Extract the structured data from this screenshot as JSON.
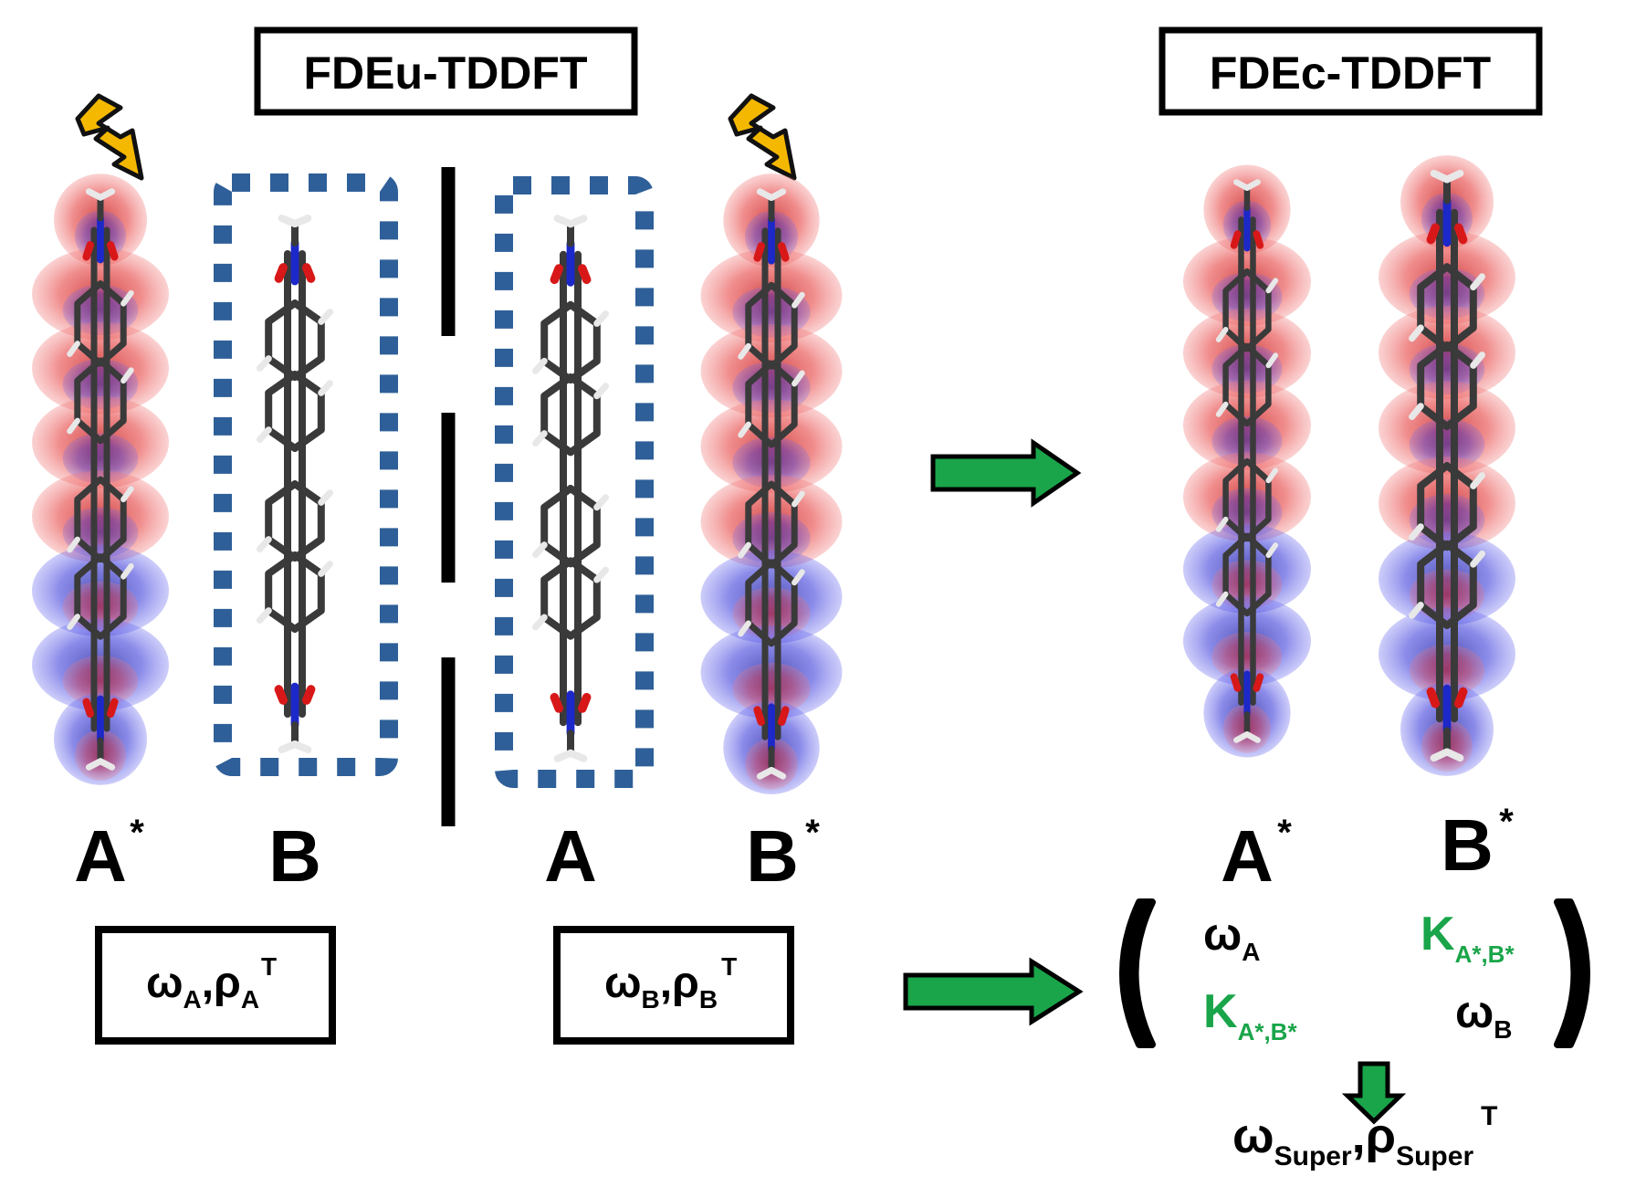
{
  "colors": {
    "box_border": "#000000",
    "dotted_frame": "#2e5f98",
    "arrow_fill": "#1aa54a",
    "coupling_text": "#1aa54a",
    "density_red": "#e03a3a",
    "density_blue": "#2b2bd6",
    "lightning": "#f5b800",
    "bond_carbon": "#3a3a3a",
    "atom_oxygen": "#d81818",
    "atom_nitrogen": "#1c28c8",
    "atom_hydrogen": "#e8e8e8"
  },
  "headers": {
    "left": "FDEu-TDDFT",
    "right": "FDEc-TDDFT"
  },
  "labels": {
    "left_A_star": "A",
    "left_B": "B",
    "mid_A": "A",
    "mid_B_star": "B",
    "right_A_star": "A",
    "right_B_star": "B",
    "star": "*"
  },
  "result_boxes": {
    "box_A": {
      "omega": "ω",
      "omega_sub": "A",
      "comma": ",",
      "rho": "ρ",
      "rho_sub": "A",
      "rho_sup": "T"
    },
    "box_B": {
      "omega": "ω",
      "omega_sub": "B",
      "comma": ",",
      "rho": "ρ",
      "rho_sub": "B",
      "rho_sup": "T"
    }
  },
  "matrix": {
    "a11": {
      "sym": "ω",
      "sub": "A"
    },
    "a12": {
      "sym": "K",
      "sub": "A*,B*"
    },
    "a21": {
      "sym": "K",
      "sub": "A*,B*"
    },
    "a22": {
      "sym": "ω",
      "sub": "B"
    }
  },
  "super_result": {
    "omega": "ω",
    "omega_sub": "Super",
    "comma": ",",
    "rho": "ρ",
    "rho_sub": "Super",
    "rho_sup": "T"
  },
  "icons": {
    "excitation": "lightning-bolt-icon",
    "flow": "right-arrow-icon",
    "down": "down-arrow-icon"
  }
}
